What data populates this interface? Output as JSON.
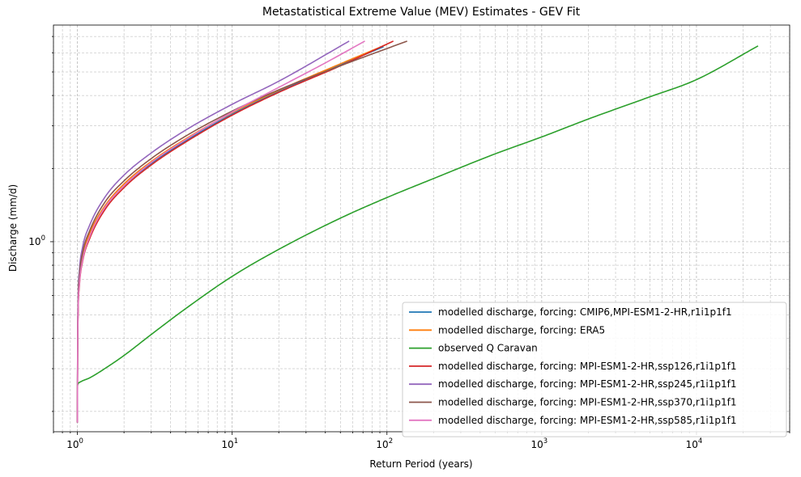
{
  "chart_data": {
    "type": "line",
    "title": "Metastatistical Extreme Value (MEV) Estimates - GEV Fit",
    "xlabel": "Return Period (years)",
    "ylabel": "Discharge (mm/d)",
    "xscale": "log",
    "yscale": "log",
    "xlim": [
      0.7,
      40000
    ],
    "ylim": [
      0.165,
      7.8
    ],
    "grid": true,
    "x_major_ticks": [
      {
        "value": 1,
        "label": "10",
        "exp": "0"
      },
      {
        "value": 10,
        "label": "10",
        "exp": "1"
      },
      {
        "value": 100,
        "label": "10",
        "exp": "2"
      },
      {
        "value": 1000,
        "label": "10",
        "exp": "3"
      },
      {
        "value": 10000,
        "label": "10",
        "exp": "4"
      }
    ],
    "y_major_ticks": [
      {
        "value": 1,
        "label": "10",
        "exp": "0"
      }
    ],
    "legend_position": "lower-right",
    "series": [
      {
        "name": "modelled discharge, forcing: CMIP6,MPI-ESM1-2-HR,r1i1p1f1",
        "color": "#1f77b4",
        "x": [
          1.0,
          1.003,
          1.01,
          1.03,
          1.08,
          1.2,
          1.5,
          2,
          3,
          5,
          10,
          20,
          50,
          95
        ],
        "y": [
          0.18,
          0.35,
          0.52,
          0.68,
          0.85,
          1.05,
          1.38,
          1.7,
          2.1,
          2.6,
          3.35,
          4.15,
          5.35,
          6.35
        ]
      },
      {
        "name": "modelled discharge, forcing: ERA5",
        "color": "#ff7f0e",
        "x": [
          1.0,
          1.003,
          1.01,
          1.03,
          1.08,
          1.2,
          1.5,
          2,
          3,
          5,
          10,
          20,
          50,
          100
        ],
        "y": [
          0.18,
          0.36,
          0.53,
          0.7,
          0.87,
          1.08,
          1.4,
          1.73,
          2.14,
          2.65,
          3.4,
          4.2,
          5.4,
          6.5
        ]
      },
      {
        "name": "observed Q Caravan",
        "color": "#2ca02c",
        "x": [
          1.0,
          1.01,
          1.05,
          1.2,
          1.5,
          2,
          3,
          5,
          10,
          20,
          50,
          100,
          200,
          500,
          1000,
          2000,
          5000,
          10000,
          25000
        ],
        "y": [
          0.255,
          0.26,
          0.265,
          0.275,
          0.3,
          0.34,
          0.415,
          0.53,
          0.72,
          0.93,
          1.25,
          1.52,
          1.82,
          2.3,
          2.7,
          3.2,
          3.95,
          4.65,
          6.4
        ]
      },
      {
        "name": "modelled discharge, forcing: MPI-ESM1-2-HR,ssp126,r1i1p1f1",
        "color": "#d62728",
        "x": [
          1.0,
          1.003,
          1.01,
          1.03,
          1.08,
          1.2,
          1.5,
          2,
          3,
          5,
          10,
          20,
          50,
          110
        ],
        "y": [
          0.18,
          0.33,
          0.5,
          0.66,
          0.83,
          1.03,
          1.35,
          1.67,
          2.07,
          2.57,
          3.32,
          4.12,
          5.3,
          6.7
        ]
      },
      {
        "name": "modelled discharge, forcing: MPI-ESM1-2-HR,ssp245,r1i1p1f1",
        "color": "#9467bd",
        "x": [
          1.0,
          1.003,
          1.01,
          1.03,
          1.08,
          1.2,
          1.5,
          2,
          3,
          5,
          10,
          20,
          57
        ],
        "y": [
          0.18,
          0.38,
          0.58,
          0.76,
          0.95,
          1.17,
          1.52,
          1.88,
          2.32,
          2.88,
          3.68,
          4.58,
          6.7
        ]
      },
      {
        "name": "modelled discharge, forcing: MPI-ESM1-2-HR,ssp370,r1i1p1f1",
        "color": "#8c564b",
        "x": [
          1.0,
          1.003,
          1.01,
          1.03,
          1.08,
          1.2,
          1.5,
          2,
          3,
          5,
          10,
          20,
          50,
          135
        ],
        "y": [
          0.18,
          0.36,
          0.55,
          0.72,
          0.9,
          1.11,
          1.45,
          1.78,
          2.2,
          2.72,
          3.45,
          4.22,
          5.3,
          6.7
        ]
      },
      {
        "name": "modelled discharge, forcing: MPI-ESM1-2-HR,ssp585,r1i1p1f1",
        "color": "#e377c2",
        "x": [
          1.0,
          1.003,
          1.01,
          1.03,
          1.08,
          1.2,
          1.5,
          2,
          3,
          5,
          10,
          20,
          40,
          72
        ],
        "y": [
          0.18,
          0.34,
          0.51,
          0.67,
          0.84,
          1.05,
          1.38,
          1.7,
          2.12,
          2.63,
          3.42,
          4.32,
          5.45,
          6.7
        ]
      }
    ]
  }
}
